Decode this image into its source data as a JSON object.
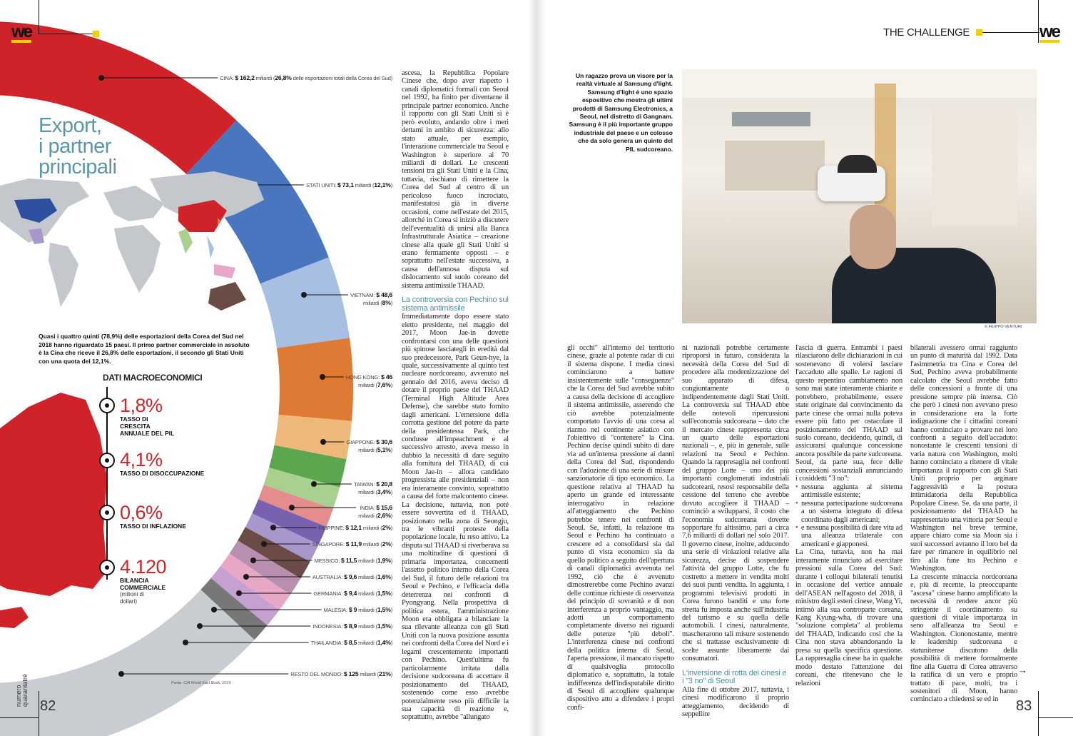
{
  "brand": {
    "logo": "we",
    "section": "THE CHALLENGE",
    "issue": "numero quarantatré",
    "page_left": "82",
    "page_right": "83"
  },
  "infographic": {
    "title_lines": [
      "Export,",
      "i partner",
      "principali"
    ],
    "caption": "Quasi i quattro quinti (78,9%) delle esportazioni della Corea del Sud nel 2018 hanno riguardato 15 paesi. Il primo partner commerciale in assoluto è la Cina che riceve il 26,8% delle esportazioni, il secondo gli Stati Uniti con una quota del 12,1%.",
    "source": "Fonte: CIA World Fact Book, 2019",
    "unit": "miliardi",
    "china_suffix": "delle esportazioni totali della Corea del Sud",
    "partners": [
      {
        "name": "CINA",
        "value": "$ 162,2",
        "pct": "26,8%",
        "color": "#cf2229"
      },
      {
        "name": "STATI UNITI",
        "value": "$ 73,1",
        "pct": "12,1%",
        "color": "#4a76bf"
      },
      {
        "name": "VIETNAM",
        "value": "$ 48,6",
        "pct": "8%",
        "color": "#a6bfe2"
      },
      {
        "name": "HONG KONG",
        "value": "$ 46",
        "pct": "7,6%",
        "color": "#df7a35"
      },
      {
        "name": "GIAPPONE",
        "value": "$ 30,6",
        "pct": "5,1%",
        "color": "#eeb87a"
      },
      {
        "name": "TAIWAN",
        "value": "$ 20,8",
        "pct": "3,4%",
        "color": "#5ba64f"
      },
      {
        "name": "INDIA",
        "value": "$ 15,6",
        "pct": "2,6%",
        "color": "#a8d08e"
      },
      {
        "name": "FILIPPINE",
        "value": "$ 12,1",
        "pct": "2%",
        "color": "#e58c8c"
      },
      {
        "name": "SINGAPORE",
        "value": "$ 11,9",
        "pct": "2%",
        "color": "#7862af"
      },
      {
        "name": "MESSICO",
        "value": "$ 11,5",
        "pct": "1,9%",
        "color": "#a797cc"
      },
      {
        "name": "AUSTRALIA",
        "value": "$ 9,6",
        "pct": "1,6%",
        "color": "#6b4b45"
      },
      {
        "name": "GERMANIA",
        "value": "$ 9,4",
        "pct": "1,5%",
        "color": "#b98fb0"
      },
      {
        "name": "MALESIA",
        "value": "$ 9",
        "pct": "1,5%",
        "color": "#e7a7c7"
      },
      {
        "name": "INDONESIA",
        "value": "$ 8,9",
        "pct": "1,5%",
        "color": "#c5a0d0"
      },
      {
        "name": "THAILANDIA",
        "value": "$ 8,5",
        "pct": "1,4%",
        "color": "#777777"
      },
      {
        "name": "RESTO DEL MONDO",
        "value": "$ 125",
        "pct": "21%",
        "color": "#c9cdd2"
      }
    ],
    "macro": {
      "heading": "DATI MACROECONOMICI",
      "items": [
        {
          "value": "1,8%",
          "label": "TASSO DI CRESCITA ANNUALE DEL PIL"
        },
        {
          "value": "4,1%",
          "label": "TASSO DI DISOCCUPAZIONE"
        },
        {
          "value": "0,6%",
          "label": "TASSO DI INFLAZIONE"
        },
        {
          "value": "4.120",
          "label": "BILANCIA COMMERCIALE",
          "sub": "(milioni di dollari)"
        }
      ]
    }
  },
  "article": {
    "left_col": [
      "ascesa, la Repubblica Popolare Cinese che, dopo aver riaperto i canali diplomatici formali con Seoul nel 1992, ha finito per diventarne il principale partner economico. Anche il rapporto con gli Stati Uniti si è però evoluto, andando oltre i meri dettami in ambito di sicurezza: allo stato attuale, per esempio, l'interazione commerciale tra Seoul e Washington è superiore ai 70 miliardi di dollari. Le crescenti tensioni tra gli Stati Uniti e la Cina, tuttavia, rischiano di rimettere la Corea del Sud al centro di un pericoloso fuoco incrociato, manifestatosi già in diverse occasioni, come nell'estate del 2015, allorché in Corea si iniziò a discutere dell'eventualità di unirsi alla Banca Infrastrutturale Asiatica – creazione cinese alla quale gli Stati Uniti si erano fermamente opposti – e soprattutto nell'estate successiva, a causa dell'annosa disputa sul dislocamento sul suolo coreano del sistema antimissile THAAD."
    ],
    "subhead1": "La controversia con Pechino sul sistema antimissile",
    "left_col2": "Immediatamente dopo essere stato eletto presidente, nel maggio del 2017, Moon Jae-in dovette confrontarsi con una delle questioni più spinose lasciategli in eredità dal suo predecessore, Park Geun-hye, la quale, successivamente al quinto test nucleare nordcoreano, avvenuto nel gennaio del 2016, aveva deciso di dotare il proprio paese del THAAD (Terminal High Altitude Area Defense), che sarebbe stato fornito dagli americani. L'emersione della corrotta gestione del potere da parte della presidentessa Park, che condusse all'impeachment e al successivo arresto, aveva messo in dubbio la necessità di dare seguito alla fornitura del THAAD, di cui Moon Jae-in – allora candidato progressista alle presidenziali – non era interamente convinto, soprattutto a causa del forte malcontento cinese. La decisione, tuttavia, non poté essere sovvertita ed il THAAD, posizionato nella zona di Seongju, tra le vibranti proteste della popolazione locale, fu reso attivo. La disputa sul THAAD si riverberava su una moltitudine di questioni di primaria importanza, concernenti l'assetto politico interno della Corea del Sud, il futuro delle relazioni tra Seoul e Pechino, e l'efficacia della deterrenza nei confronti di Pyongyang. Nella prospettiva di politica estera, l'amministrazione Moon era obbligata a bilanciare la sua rilevante alleanza con gli Stati Uniti con la nuova posizione assunta nei confronti della Corea del Nord e i legami crescentemente importanti con Pechino. Quest'ultima fu particolarmente irritata dalla decisione sudcoreana di accettare il posizionamento del THAAD, sostenendo come esso avrebbe potenzialmente reso più difficile la sua capacità di reazione e, soprattutto, avrebbe \"allungato",
    "col3": "gli occhi\" all'interno del territorio cinese, grazie al potente radar di cui il sistema dispone. I media cinesi cominciarono a battere insistentemente sulle \"conseguenze\" che la Corea del Sud avrebbe subito a causa della decisione di accogliere il sistema antimissile, asserendo che ciò avrebbe potenzialmente comportato l'avvio di una corsa al riarmo nel continente asiatico con l'obiettivo di \"contenere\" la Cina. Pechino decise quindi subito di dare via ad un'intensa pressione ai danni della Corea del Sud, rispondendo con l'adozione di una serie di misure sanzionatorie di tipo economico. La questione relativa al THAAD ha aperto un grande ed interessante interrogativo in relazione all'atteggiamento che Pechino potrebbe tenere nei confronti di Seoul. Se, infatti, la relazione tra Seoul e Pechino ha continuato a crescere ed a consolidarsi sia dal punto di vista economico sia da quello politico a seguito dell'apertura di canali diplomatici avvenuta nel 1992, ciò che è avvenuto dimostrerebbe come Pechino avanzi delle continue richieste di osservanza del principio di sovranità e di non interferenza a proprio vantaggio, ma adotti un comportamento completamente diverso nei riguardi delle potenze \"più deboli\". L'interferenza cinese nei confronti della politica interna di Seoul, l'aperta pressione, il mancato rispetto di qualsivoglia protocollo diplomatico e, soprattutto, la totale indifferenza dell'indisputabile diritto di Seoul di accogliere qualunque dispositivo atto a difendere i propri confi-",
    "col4": "ni nazionali potrebbe certamente riproporsi in futuro, considerata la necessità della Corea del Sud di procedere alla modernizzazione del suo apparato di difesa, congiuntamente o indipendentemente dagli Stati Uniti. La controversia sul THAAD ebbe delle notevoli ripercussioni sull'economia sudcoreana – dato che il mercato cinese rappresenta circa un quarto delle esportazioni nazionali –, e, più in generale, sulle relazioni tra Seoul e Pechino. Quando la rappresaglia nei confronti del gruppo Lotte – uno dei più importanti conglomerati industriali sudcoreani, resosi responsabile della cessione del terreno che avrebbe dovuto accogliere il THAAD – cominciò a svilupparsi, il costo che l'economia sudcoreana dovette sopportare fu altissimo, pari a circa 7,6 miliardi di dollari nel solo 2017. Il governo cinese, inoltre, adducendo una serie di violazioni relative alla sicurezza, decise di sospendere l'attività del gruppo Lotte, che fu costretto a mettere in vendita molti dei suoi punti vendita. In aggiunta, i programmi televisivi prodotti in Corea furono banditi e una forte stretta fu imposta anche sull'industria del turismo e su quella delle automobili. I cinesi, naturalmente, mascherarono tali misure sostenendo che si trattasse esclusivamente di scelte assunte liberamente dai consumatori.",
    "subhead2": "L'inversione di rotta dei cinesi e i \"3 no\" di Seoul",
    "col4b": "Alla fine di ottobre 2017, tuttavia, i cinesi modificarono il proprio atteggiamento, decidendo di seppellire",
    "col5": "l'ascia di guerra. Entrambi i paesi rilasciarono delle dichiarazioni in cui sostenevano di volersi lasciare l'accaduto alle spalle. Le ragioni di questo repentino cambiamento non sono mai state interamente chiarite e potrebbero, probabilmente, essere state originate dal convincimento da parte cinese che ormai nulla poteva essere più fatto per ostacolare il posizionamento del THAAD sul suolo coreano, decidendo, quindi, di assicurarsi qualunque concessione ancora possibile da parte sudcoreana. Seoul, da parte sua, fece delle concessioni sostanziali annunciando i cosiddetti \"3 no\":",
    "bullets": [
      "nessuna aggiunta al sistema antimissile esistente;",
      "nessuna partecipazione sudcoreana a un sistema integrato di difesa coordinato dagli americani;",
      "e nessuna possibilità di dare vita ad una alleanza trilaterale con americani e giapponesi."
    ],
    "col5b": "La Cina, tuttavia, non ha mai interamente rinunciato ad esercitare pressioni sulla Corea del Sud: durante i colloqui bilaterali tenutisi in occasione del vertice annuale dell'ASEAN nell'agosto del 2018, il ministro degli esteri cinese, Wang Yi, intimò alla sua controparte coreana, Kang Kyung-wha, di trovare una \"soluzione completa\" al problema del THAAD, indicando così che la Cina non stava abbandonando la presa su quella specifica questione. La rappresaglia cinese ha in qualche modo destato l'attenzione dei coreani, che ritenevano che le relazioni",
    "col6": "bilaterali avessero ormai raggiunto un punto di maturità dal 1992. Data l'asimmetria tra Cina e Corea del Sud, Pechino aveva probabilmente calcolato che Seoul avrebbe fatto delle concessioni a fronte di una pressione sempre più intensa. Ciò che però i cinesi non avevano preso in considerazione era la forte indignazione che i cittadini coreani hanno cominciato a provare nei loro confronti a seguito dell'accaduto: nonostante le crescenti tensioni di varia natura con Washington, molti hanno cominciato a ritenere di vitale importanza il rapporto con gli Stati Uniti proprio per arginare l'aggressività e la postura intimidatoria della Repubblica Popolare Cinese. Se, da una parte, il posizionamento del THAAD ha rappresentato una vittoria per Seoul e Washington nel breve termine, appare chiaro come sia Moon sia i suoi successori avranno il loro bel da fare per rimanere in equilibrio nel tiro alla fune tra Pechino e Washington.",
    "col6b": "La crescente minaccia nordcoreana e, più di recente, la preoccupante \"ascesa\" cinese hanno amplificato la necessità di rendere ancor più stringente il coordinamento su questioni di vitale importanza in seno all'alleanza tra Seoul e Washington. Ciononostante, mentre le leadership sudcoreana e statunitense discutono della possibilità di mettere formalmente fine alla Guerra di Corea attraverso la ratifica di un vero e proprio trattato di pace, molti, tra i sostenitori di Moon, hanno cominciato a chiedersi se ed in",
    "continue_arrow": "→"
  },
  "photo": {
    "caption": "Un ragazzo prova un visore per la realtà virtuale al Samsung d'light. Samsung d'light è uno spazio espositivo che mostra gli ultimi prodotti di Samsung Electronics, a Seoul, nel distretto di Gangnam. Samsung è il più importante gruppo industriale del paese e un colosso che da solo genera un quinto del PIL sudcoreano.",
    "credit": "© FILIPPO VENTURI"
  }
}
